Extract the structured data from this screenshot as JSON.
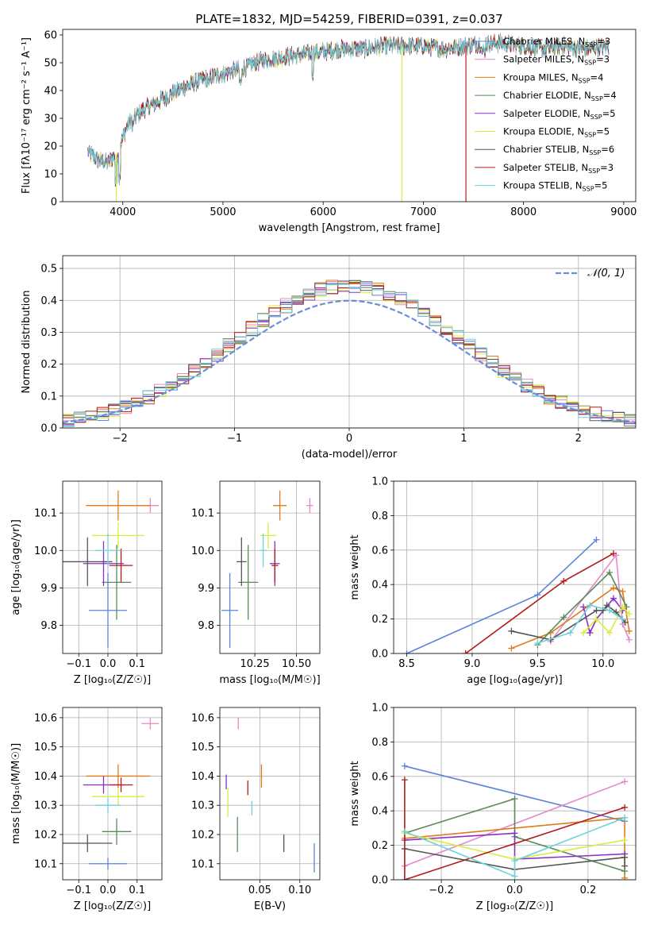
{
  "figure_title": "PLATE=1832, MJD=54259, FIBERID=0391, z=0.037",
  "colors": {
    "Chabrier MILES": "#5b84d8",
    "Salpeter MILES": "#e48ac8",
    "Kroupa MILES": "#e07b1a",
    "Chabrier ELODIE": "#5a8a5a",
    "Salpeter ELODIE": "#8b2fc9",
    "Kroupa ELODIE": "#d6ee3c",
    "Chabrier STELIB": "#555555",
    "Salpeter STELIB": "#b01c1c",
    "Kroupa STELIB": "#6ed2dd"
  },
  "chart_data": [
    {
      "id": "spectrum",
      "type": "line",
      "xlabel": "wavelength [Angstrom, rest frame]",
      "ylabel": "Flux [fλ10⁻¹⁷ erg cm⁻² s⁻¹ A⁻¹]",
      "xlim": [
        3400,
        9120
      ],
      "ylim": [
        0,
        62
      ],
      "xticks": [
        4000,
        5000,
        6000,
        7000,
        8000,
        9000
      ],
      "yticks": [
        0,
        10,
        20,
        30,
        40,
        50,
        60
      ],
      "legend_placement": "right",
      "legend": [
        {
          "label": "Chabrier MILES, N",
          "sub": "SSP",
          "tail": "=3"
        },
        {
          "label": "Salpeter MILES, N",
          "sub": "SSP",
          "tail": "=3"
        },
        {
          "label": "Kroupa MILES, N",
          "sub": "SSP",
          "tail": "=4"
        },
        {
          "label": "Chabrier ELODIE, N",
          "sub": "SSP",
          "tail": "=4"
        },
        {
          "label": "Salpeter ELODIE, N",
          "sub": "SSP",
          "tail": "=5"
        },
        {
          "label": "Kroupa ELODIE, N",
          "sub": "SSP",
          "tail": "=5"
        },
        {
          "label": "Chabrier STELIB, N",
          "sub": "SSP",
          "tail": "=6"
        },
        {
          "label": "Salpeter STELIB, N",
          "sub": "SSP",
          "tail": "=3"
        },
        {
          "label": "Kroupa STELIB, N",
          "sub": "SSP",
          "tail": "=5"
        }
      ],
      "continuum": {
        "x": [
          3650,
          3750,
          3850,
          3950,
          4050,
          4200,
          4400,
          4600,
          4800,
          5000,
          5200,
          5400,
          5600,
          5800,
          6000,
          6200,
          6400,
          6600,
          6800,
          7000,
          7200,
          7400,
          7600,
          7800,
          8000,
          8200,
          8400,
          8600,
          8850
        ],
        "y": [
          18,
          15,
          14,
          18,
          28,
          33,
          37,
          41,
          44,
          46,
          48,
          51,
          52,
          53,
          54,
          55,
          55,
          56,
          56,
          56,
          55,
          56,
          57,
          57,
          56,
          55,
          56,
          55,
          56
        ]
      },
      "drops": [
        {
          "x": 3935,
          "series": "Kroupa ELODIE"
        },
        {
          "x": 6785,
          "series": "Kroupa ELODIE"
        },
        {
          "x": 7425,
          "series": "Salpeter STELIB"
        }
      ]
    },
    {
      "id": "residuals",
      "type": "area",
      "xlabel": "(data-model)/error",
      "ylabel": "Normed distribution",
      "xlim": [
        -2.5,
        2.5
      ],
      "ylim": [
        0,
        0.54
      ],
      "xticks": [
        -2,
        -1,
        0,
        1,
        2
      ],
      "yticks": [
        0.0,
        0.1,
        0.2,
        0.3,
        0.4,
        0.5
      ],
      "grid": true,
      "legend_placement": "top-right",
      "reference": {
        "name": "𝒩(0, 1)",
        "mean": 0,
        "sigma": 1
      },
      "bin_width": 0.1
    },
    {
      "id": "age_vs_Z",
      "type": "scatter",
      "xlabel": "Z [log₁₀(Z/Z☉)]",
      "ylabel": "age  [log₁₀(age/yr)]",
      "xlim": [
        -0.155,
        0.185
      ],
      "ylim": [
        9.725,
        10.185
      ],
      "xticks": [
        -0.1,
        0.0,
        0.1
      ],
      "yticks": [
        9.8,
        9.9,
        10.0,
        10.1
      ],
      "grid": true,
      "points": [
        {
          "series": "Chabrier MILES",
          "x": 0.0,
          "y": 9.84,
          "xerr": 0.065,
          "yerr": 0.1
        },
        {
          "series": "Salpeter MILES",
          "x": 0.145,
          "y": 10.12,
          "xerr": 0.03,
          "yerr": 0.02
        },
        {
          "series": "Kroupa MILES",
          "x": 0.035,
          "y": 10.12,
          "xerr": 0.11,
          "yerr": 0.04
        },
        {
          "series": "Chabrier ELODIE",
          "x": 0.03,
          "y": 9.915,
          "xerr": 0.05,
          "yerr": 0.1
        },
        {
          "series": "Salpeter ELODIE",
          "x": -0.015,
          "y": 9.965,
          "xerr": 0.07,
          "yerr": 0.06
        },
        {
          "series": "Kroupa ELODIE",
          "x": 0.035,
          "y": 10.04,
          "xerr": 0.09,
          "yerr": 0.035
        },
        {
          "series": "Chabrier STELIB",
          "x": -0.07,
          "y": 9.97,
          "xerr": 0.085,
          "yerr": 0.065
        },
        {
          "series": "Salpeter STELIB",
          "x": 0.045,
          "y": 9.96,
          "xerr": 0.04,
          "yerr": 0.045
        },
        {
          "series": "Kroupa STELIB",
          "x": 0.0,
          "y": 10.0,
          "xerr": 0.045,
          "yerr": 0.045
        }
      ]
    },
    {
      "id": "age_vs_mass",
      "type": "scatter",
      "xlabel": "mass [log₁₀(M/M☉)]",
      "ylabel": "",
      "xlim": [
        10.04,
        10.64
      ],
      "ylim": [
        9.725,
        10.185
      ],
      "xticks": [
        10.25,
        10.5
      ],
      "yticks": [
        9.8,
        9.9,
        10.0,
        10.1
      ],
      "grid": true,
      "points": [
        {
          "series": "Chabrier MILES",
          "x": 10.1,
          "y": 9.84,
          "xerr": 0.05,
          "yerr": 0.1
        },
        {
          "series": "Salpeter MILES",
          "x": 10.58,
          "y": 10.12,
          "xerr": 0.02,
          "yerr": 0.02
        },
        {
          "series": "Kroupa MILES",
          "x": 10.4,
          "y": 10.12,
          "xerr": 0.04,
          "yerr": 0.04
        },
        {
          "series": "Chabrier ELODIE",
          "x": 10.21,
          "y": 9.915,
          "xerr": 0.06,
          "yerr": 0.1
        },
        {
          "series": "Salpeter ELODIE",
          "x": 10.37,
          "y": 9.965,
          "xerr": 0.03,
          "yerr": 0.06
        },
        {
          "series": "Kroupa ELODIE",
          "x": 10.33,
          "y": 10.04,
          "xerr": 0.05,
          "yerr": 0.035
        },
        {
          "series": "Chabrier STELIB",
          "x": 10.17,
          "y": 9.97,
          "xerr": 0.03,
          "yerr": 0.065
        },
        {
          "series": "Salpeter STELIB",
          "x": 10.37,
          "y": 9.96,
          "xerr": 0.02,
          "yerr": 0.045
        },
        {
          "series": "Kroupa STELIB",
          "x": 10.3,
          "y": 10.0,
          "xerr": 0.02,
          "yerr": 0.045
        }
      ]
    },
    {
      "id": "massweight_vs_age",
      "type": "line",
      "xlabel": "age  [log₁₀(age/yr)]",
      "ylabel": "mass weight",
      "xlim": [
        8.4,
        10.25
      ],
      "ylim": [
        0,
        1.0
      ],
      "xticks": [
        8.5,
        9.0,
        9.5,
        10.0
      ],
      "yticks": [
        0.0,
        0.2,
        0.4,
        0.6,
        0.8,
        1.0
      ],
      "grid": true,
      "series": [
        {
          "name": "Chabrier MILES",
          "x": [
            8.5,
            9.5,
            9.95
          ],
          "y": [
            0.0,
            0.34,
            0.66
          ]
        },
        {
          "name": "Salpeter MILES",
          "x": [
            9.6,
            10.1,
            10.15,
            10.2
          ],
          "y": [
            0.07,
            0.57,
            0.17,
            0.08
          ]
        },
        {
          "name": "Kroupa MILES",
          "x": [
            9.3,
            9.6,
            10.08,
            10.15,
            10.2
          ],
          "y": [
            0.03,
            0.12,
            0.38,
            0.36,
            0.13
          ]
        },
        {
          "name": "Chabrier ELODIE",
          "x": [
            9.5,
            9.7,
            10.05,
            10.18
          ],
          "y": [
            0.05,
            0.21,
            0.47,
            0.27
          ]
        },
        {
          "name": "Salpeter ELODIE",
          "x": [
            9.85,
            9.9,
            9.95,
            10.08,
            10.15
          ],
          "y": [
            0.27,
            0.12,
            0.2,
            0.32,
            0.25
          ]
        },
        {
          "name": "Kroupa ELODIE",
          "x": [
            9.85,
            9.95,
            10.05,
            10.15,
            10.2
          ],
          "y": [
            0.12,
            0.2,
            0.12,
            0.27,
            0.23
          ]
        },
        {
          "name": "Chabrier STELIB",
          "x": [
            9.3,
            9.6,
            9.95,
            10.0,
            10.03,
            10.1,
            10.17
          ],
          "y": [
            0.13,
            0.08,
            0.25,
            0.25,
            0.28,
            0.24,
            0.18
          ]
        },
        {
          "name": "Salpeter STELIB",
          "x": [
            8.95,
            9.7,
            10.08
          ],
          "y": [
            0.0,
            0.42,
            0.58
          ]
        },
        {
          "name": "Kroupa STELIB",
          "x": [
            9.5,
            9.75,
            9.9,
            10.05,
            10.15
          ],
          "y": [
            0.06,
            0.12,
            0.28,
            0.25,
            0.2
          ]
        }
      ]
    },
    {
      "id": "mass_vs_Z",
      "type": "scatter",
      "xlabel": "Z [log₁₀(Z/Z☉)]",
      "ylabel": "mass [log₁₀(M/M☉)]",
      "xlim": [
        -0.155,
        0.185
      ],
      "ylim": [
        10.045,
        10.635
      ],
      "xticks": [
        -0.1,
        0.0,
        0.1
      ],
      "yticks": [
        10.1,
        10.2,
        10.3,
        10.4,
        10.5,
        10.6
      ],
      "grid": true,
      "points": [
        {
          "series": "Chabrier MILES",
          "x": 0.0,
          "y": 10.1,
          "xerr": 0.065,
          "yerr": 0.02
        },
        {
          "series": "Salpeter MILES",
          "x": 0.145,
          "y": 10.58,
          "xerr": 0.03,
          "yerr": 0.02
        },
        {
          "series": "Kroupa MILES",
          "x": 0.035,
          "y": 10.4,
          "xerr": 0.11,
          "yerr": 0.04
        },
        {
          "series": "Chabrier ELODIE",
          "x": 0.03,
          "y": 10.21,
          "xerr": 0.05,
          "yerr": 0.045
        },
        {
          "series": "Salpeter ELODIE",
          "x": -0.015,
          "y": 10.37,
          "xerr": 0.07,
          "yerr": 0.03
        },
        {
          "series": "Kroupa ELODIE",
          "x": 0.035,
          "y": 10.33,
          "xerr": 0.09,
          "yerr": 0.03
        },
        {
          "series": "Chabrier STELIB",
          "x": -0.07,
          "y": 10.17,
          "xerr": 0.085,
          "yerr": 0.03
        },
        {
          "series": "Salpeter STELIB",
          "x": 0.045,
          "y": 10.37,
          "xerr": 0.04,
          "yerr": 0.025
        },
        {
          "series": "Kroupa STELIB",
          "x": 0.0,
          "y": 10.3,
          "xerr": 0.045,
          "yerr": 0.025
        }
      ]
    },
    {
      "id": "mass_vs_EBV",
      "type": "scatter",
      "xlabel": "E(B-V)",
      "ylabel": "",
      "xlim": [
        0.0,
        0.125
      ],
      "ylim": [
        10.045,
        10.635
      ],
      "xticks": [
        0.05,
        0.1
      ],
      "yticks": [
        10.1,
        10.2,
        10.3,
        10.4,
        10.5,
        10.6
      ],
      "grid": true,
      "points": [
        {
          "series": "Chabrier MILES",
          "x": 0.118,
          "y": 10.12,
          "xerr": 0,
          "yerr": 0.05
        },
        {
          "series": "Salpeter MILES",
          "x": 0.023,
          "y": 10.58,
          "xerr": 0,
          "yerr": 0.02
        },
        {
          "series": "Kroupa MILES",
          "x": 0.052,
          "y": 10.4,
          "xerr": 0,
          "yerr": 0.04
        },
        {
          "series": "Chabrier ELODIE",
          "x": 0.022,
          "y": 10.2,
          "xerr": 0,
          "yerr": 0.06
        },
        {
          "series": "Salpeter ELODIE",
          "x": 0.008,
          "y": 10.38,
          "xerr": 0,
          "yerr": 0.025
        },
        {
          "series": "Kroupa ELODIE",
          "x": 0.01,
          "y": 10.31,
          "xerr": 0,
          "yerr": 0.05
        },
        {
          "series": "Chabrier STELIB",
          "x": 0.08,
          "y": 10.17,
          "xerr": 0,
          "yerr": 0.03
        },
        {
          "series": "Salpeter STELIB",
          "x": 0.035,
          "y": 10.36,
          "xerr": 0,
          "yerr": 0.025
        },
        {
          "series": "Kroupa STELIB",
          "x": 0.04,
          "y": 10.29,
          "xerr": 0,
          "yerr": 0.025
        }
      ]
    },
    {
      "id": "massweight_vs_Z",
      "type": "line",
      "xlabel": "Z [log₁₀(Z/Z☉)]",
      "ylabel": "mass weight",
      "xlim": [
        -0.33,
        0.33
      ],
      "ylim": [
        0,
        1.0
      ],
      "xticks": [
        -0.2,
        0.0,
        0.2
      ],
      "yticks": [
        0.0,
        0.2,
        0.4,
        0.6,
        0.8,
        1.0
      ],
      "grid": true,
      "series": [
        {
          "name": "Chabrier MILES",
          "x": [
            -0.3,
            0.3
          ],
          "y": [
            0.66,
            0.34
          ]
        },
        {
          "name": "Salpeter MILES",
          "x": [
            -0.3,
            0.3
          ],
          "y": [
            0.08,
            0.57
          ]
        },
        {
          "name": "Kroupa MILES",
          "x": [
            -0.3,
            0.3,
            0.3
          ],
          "y": [
            0.24,
            0.36,
            0.01
          ]
        },
        {
          "name": "Chabrier ELODIE",
          "x": [
            -0.3,
            0.0,
            0.0,
            0.3
          ],
          "y": [
            0.27,
            0.47,
            0.25,
            0.05
          ]
        },
        {
          "name": "Salpeter ELODIE",
          "x": [
            -0.3,
            0.0,
            0.0,
            0.3
          ],
          "y": [
            0.23,
            0.27,
            0.12,
            0.15
          ]
        },
        {
          "name": "Kroupa ELODIE",
          "x": [
            -0.3,
            0.0,
            0.3
          ],
          "y": [
            0.27,
            0.12,
            0.23
          ]
        },
        {
          "name": "Chabrier STELIB",
          "x": [
            -0.3,
            0.0,
            0.3,
            0.3
          ],
          "y": [
            0.18,
            0.06,
            0.13,
            0.08
          ]
        },
        {
          "name": "Salpeter STELIB",
          "x": [
            -0.3,
            -0.3,
            0.3
          ],
          "y": [
            0.58,
            0.0,
            0.42
          ]
        },
        {
          "name": "Kroupa STELIB",
          "x": [
            -0.3,
            0.0,
            0.0,
            0.3
          ],
          "y": [
            0.28,
            0.02,
            0.11,
            0.36
          ]
        }
      ]
    }
  ]
}
